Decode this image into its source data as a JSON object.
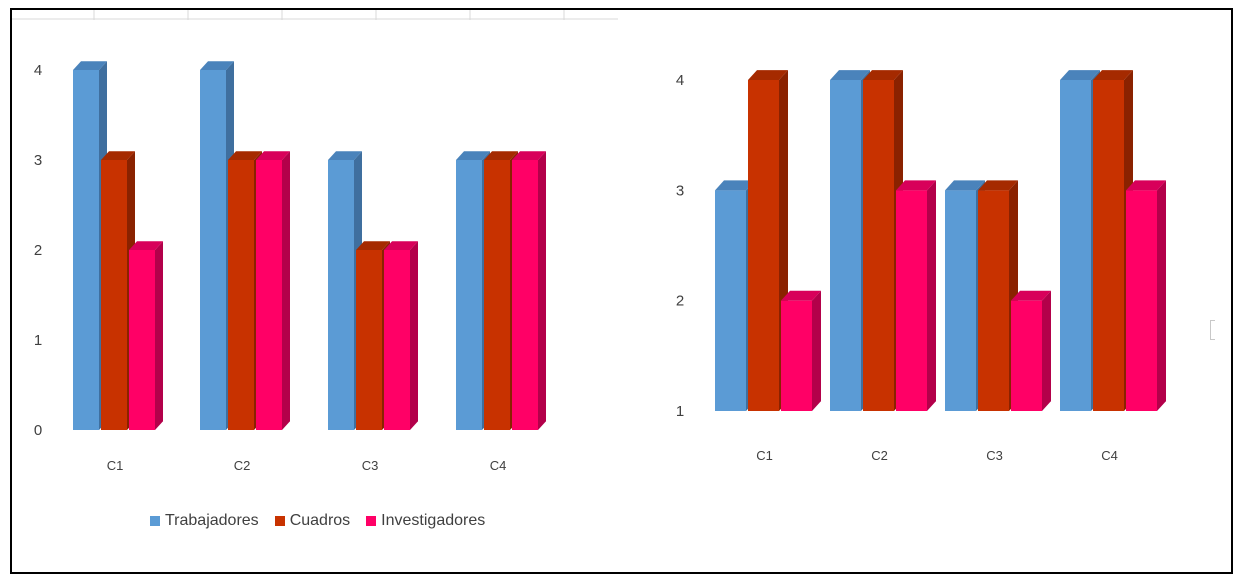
{
  "colors": {
    "series": [
      "#5b9bd5",
      "#c83200",
      "#ff0066"
    ],
    "side": [
      "#3f6f9f",
      "#8a2200",
      "#b3004a"
    ],
    "top": [
      "#4a83bb",
      "#a52a00",
      "#d8005a"
    ]
  },
  "chart_data": [
    {
      "type": "bar",
      "categories": [
        "C1",
        "C2",
        "C3",
        "C4"
      ],
      "series": [
        {
          "name": "Trabajadores",
          "values": [
            4,
            4,
            3,
            3
          ]
        },
        {
          "name": "Cuadros",
          "values": [
            3,
            3,
            2,
            3
          ]
        },
        {
          "name": "Investigadores",
          "values": [
            2,
            3,
            2,
            3
          ]
        }
      ],
      "yticks": [
        "0",
        "1",
        "2",
        "3",
        "4"
      ],
      "ylim": [
        0,
        4
      ],
      "legend": "bottom",
      "grid": false
    },
    {
      "type": "bar",
      "categories": [
        "C1",
        "C2",
        "C3",
        "C4"
      ],
      "series": [
        {
          "values": [
            3,
            4,
            3,
            4
          ]
        },
        {
          "values": [
            4,
            4,
            3,
            4
          ]
        },
        {
          "values": [
            2,
            3,
            2,
            3
          ]
        }
      ],
      "yticks": [
        "1",
        "2",
        "3",
        "4"
      ],
      "ylim": [
        1,
        4
      ],
      "legend": "none",
      "grid": false
    }
  ]
}
